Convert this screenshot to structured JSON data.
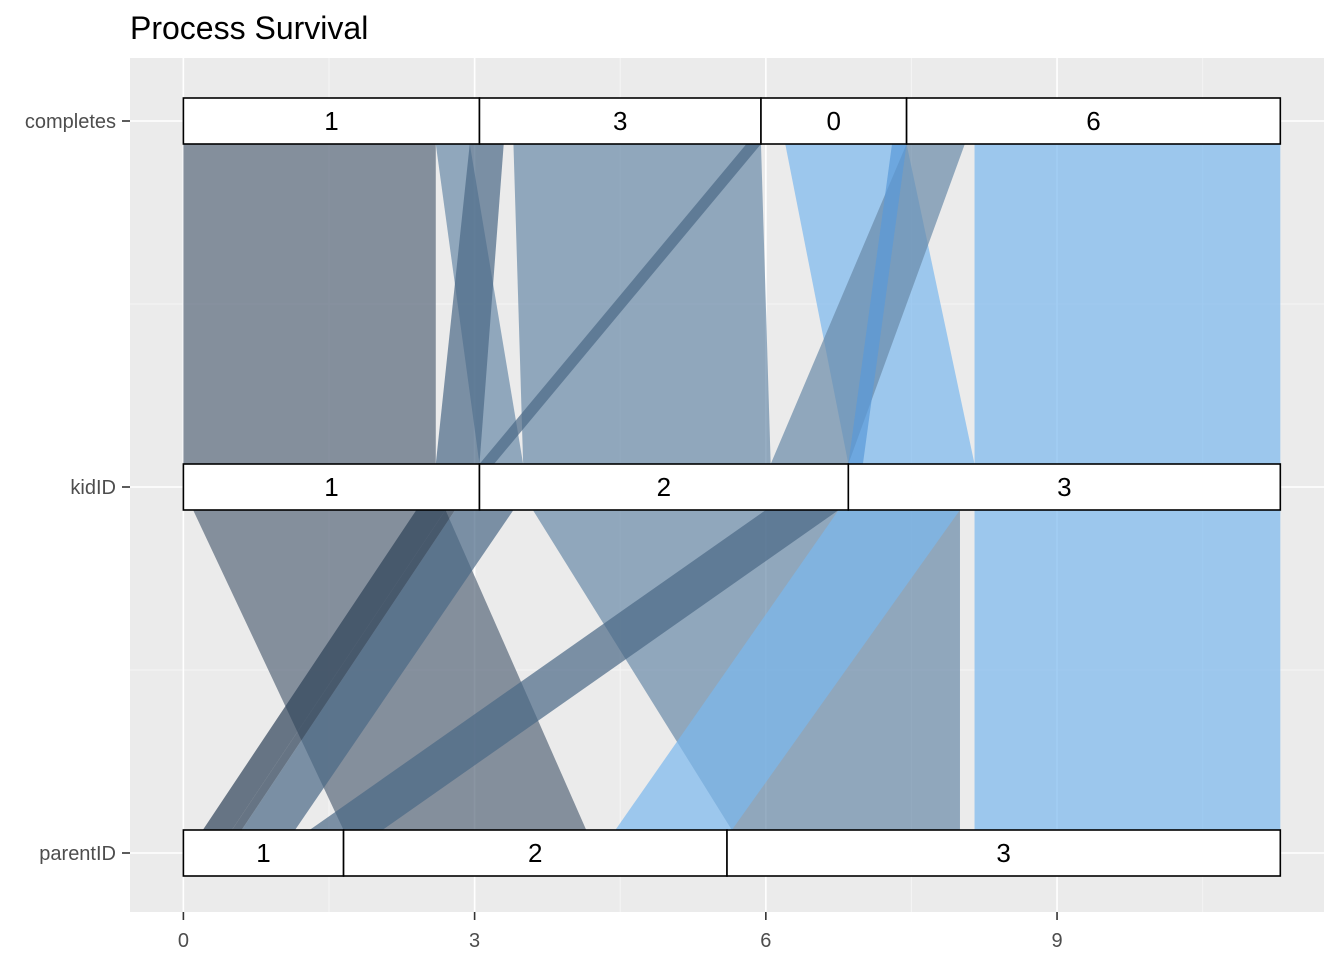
{
  "chart_data": {
    "type": "alluvial",
    "title": "Process Survival",
    "xlabel": "",
    "ylabel": "",
    "xlim": [
      -0.55,
      11.75
    ],
    "x_ticks": [
      0,
      3,
      6,
      9
    ],
    "grid": true,
    "axes": [
      "completes",
      "kidID",
      "parentID"
    ],
    "strata": {
      "completes": [
        {
          "label": "1",
          "size": 3.05
        },
        {
          "label": "3",
          "size": 2.9
        },
        {
          "label": "0",
          "size": 1.5
        },
        {
          "label": "6",
          "size": 3.85
        }
      ],
      "kidID": [
        {
          "label": "1",
          "size": 3.05
        },
        {
          "label": "2",
          "size": 3.8
        },
        {
          "label": "3",
          "size": 4.45
        }
      ],
      "parentID": [
        {
          "label": "1",
          "size": 1.65
        },
        {
          "label": "2",
          "size": 3.95
        },
        {
          "label": "3",
          "size": 5.7
        }
      ]
    },
    "flows_upper": [
      {
        "from": [
          0,
          2.6
        ],
        "to": [
          0,
          2.6
        ],
        "color": "#58687a"
      },
      {
        "from": [
          2.6,
          2.95
        ],
        "to": [
          3.05,
          3.5
        ],
        "color": "#6a8aa8"
      },
      {
        "from": [
          2.95,
          3.3
        ],
        "to": [
          2.6,
          3.05
        ],
        "color": "#4a6886"
      },
      {
        "from": [
          3.4,
          5.95
        ],
        "to": [
          3.5,
          6.05
        ],
        "color": "#6a8aa8"
      },
      {
        "from": [
          5.8,
          5.95
        ],
        "to": [
          3.05,
          3.2
        ],
        "color": "#4a6886"
      },
      {
        "from": [
          6.2,
          7.45
        ],
        "to": [
          6.85,
          8.15
        ],
        "color": "#7ab8ee"
      },
      {
        "from": [
          7.45,
          8.05
        ],
        "to": [
          6.05,
          6.85
        ],
        "color": "#6a8aa8"
      },
      {
        "from": [
          7.3,
          7.45
        ],
        "to": [
          6.85,
          7.0
        ],
        "color": "#5a9ad8"
      },
      {
        "from": [
          8.15,
          11.3
        ],
        "to": [
          8.15,
          11.3
        ],
        "color": "#7ab8ee"
      }
    ],
    "flows_lower": [
      {
        "from": [
          0.1,
          2.7
        ],
        "to": [
          1.65,
          4.15
        ],
        "color": "#58687a"
      },
      {
        "from": [
          2.4,
          2.7
        ],
        "to": [
          0.2,
          0.5
        ],
        "color": "#2e4258"
      },
      {
        "from": [
          2.7,
          2.8
        ],
        "to": [
          0.5,
          0.6
        ],
        "color": "#2e4258"
      },
      {
        "from": [
          2.8,
          3.4
        ],
        "to": [
          0.6,
          1.15
        ],
        "color": "#4a6886"
      },
      {
        "from": [
          3.6,
          8.0
        ],
        "to": [
          5.65,
          8.0
        ],
        "color": "#6a8aa8"
      },
      {
        "from": [
          6.0,
          6.75
        ],
        "to": [
          1.3,
          2.05
        ],
        "color": "#4a6886"
      },
      {
        "from": [
          6.75,
          8.0
        ],
        "to": [
          4.45,
          5.65
        ],
        "color": "#7ab8ee"
      },
      {
        "from": [
          8.15,
          11.3
        ],
        "to": [
          8.15,
          11.3
        ],
        "color": "#7ab8ee"
      }
    ]
  }
}
